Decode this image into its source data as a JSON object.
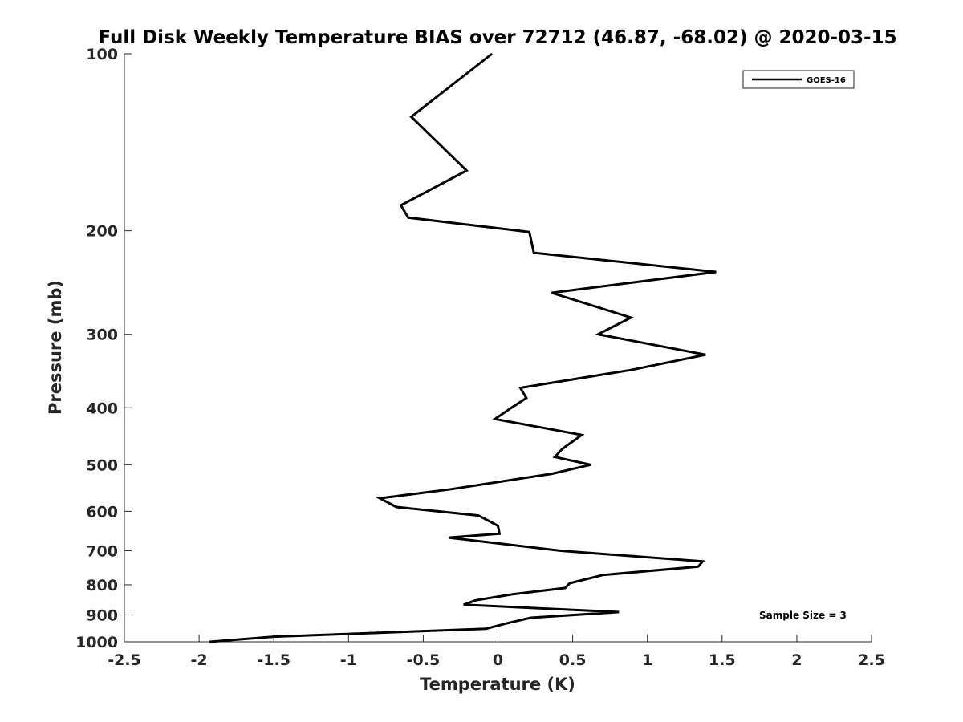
{
  "chart_data": {
    "type": "line",
    "title": "Full Disk Weekly Temperature BIAS over 72712 (46.87, -68.02) @ 2020-03-15",
    "xlabel": "Temperature (K)",
    "ylabel": "Pressure (mb)",
    "xlim": [
      -2.5,
      2.5
    ],
    "ylim": [
      100,
      1000
    ],
    "y_scale": "log",
    "y_reversed": true,
    "x_ticks": [
      "-2.5",
      "-2",
      "-1.5",
      "-1",
      "-0.5",
      "0",
      "0.5",
      "1",
      "1.5",
      "2",
      "2.5"
    ],
    "y_ticks": [
      "100",
      "200",
      "300",
      "400",
      "500",
      "600",
      "700",
      "800",
      "900",
      "1000"
    ],
    "grid": false,
    "legend_position": "top-right",
    "annotation": "Sample Size = 3",
    "colors": {
      "line": "#000000",
      "text": "#262626"
    },
    "series": [
      {
        "name": "GOES-16",
        "x": [
          -0.04,
          -0.58,
          -0.21,
          -0.65,
          -0.6,
          0.21,
          0.24,
          1.46,
          0.36,
          0.89,
          0.67,
          1.39,
          0.89,
          0.15,
          0.19,
          0.09,
          -0.02,
          0.56,
          0.43,
          0.38,
          0.62,
          0.36,
          -0.31,
          -0.79,
          -0.68,
          -0.13,
          0.0,
          0.01,
          -0.33,
          0.42,
          1.37,
          1.34,
          0.7,
          0.48,
          0.45,
          0.1,
          -0.15,
          -0.23,
          0.81,
          0.22,
          0.06,
          -0.08,
          -1.5,
          -1.93
        ],
        "y": [
          100,
          128,
          158,
          181,
          190,
          201,
          218,
          235,
          255,
          281,
          300,
          325,
          345,
          370,
          385,
          400,
          418,
          445,
          470,
          485,
          500,
          518,
          550,
          570,
          590,
          610,
          635,
          655,
          665,
          700,
          730,
          745,
          770,
          795,
          810,
          830,
          850,
          865,
          890,
          910,
          930,
          950,
          980,
          1000
        ]
      }
    ]
  }
}
